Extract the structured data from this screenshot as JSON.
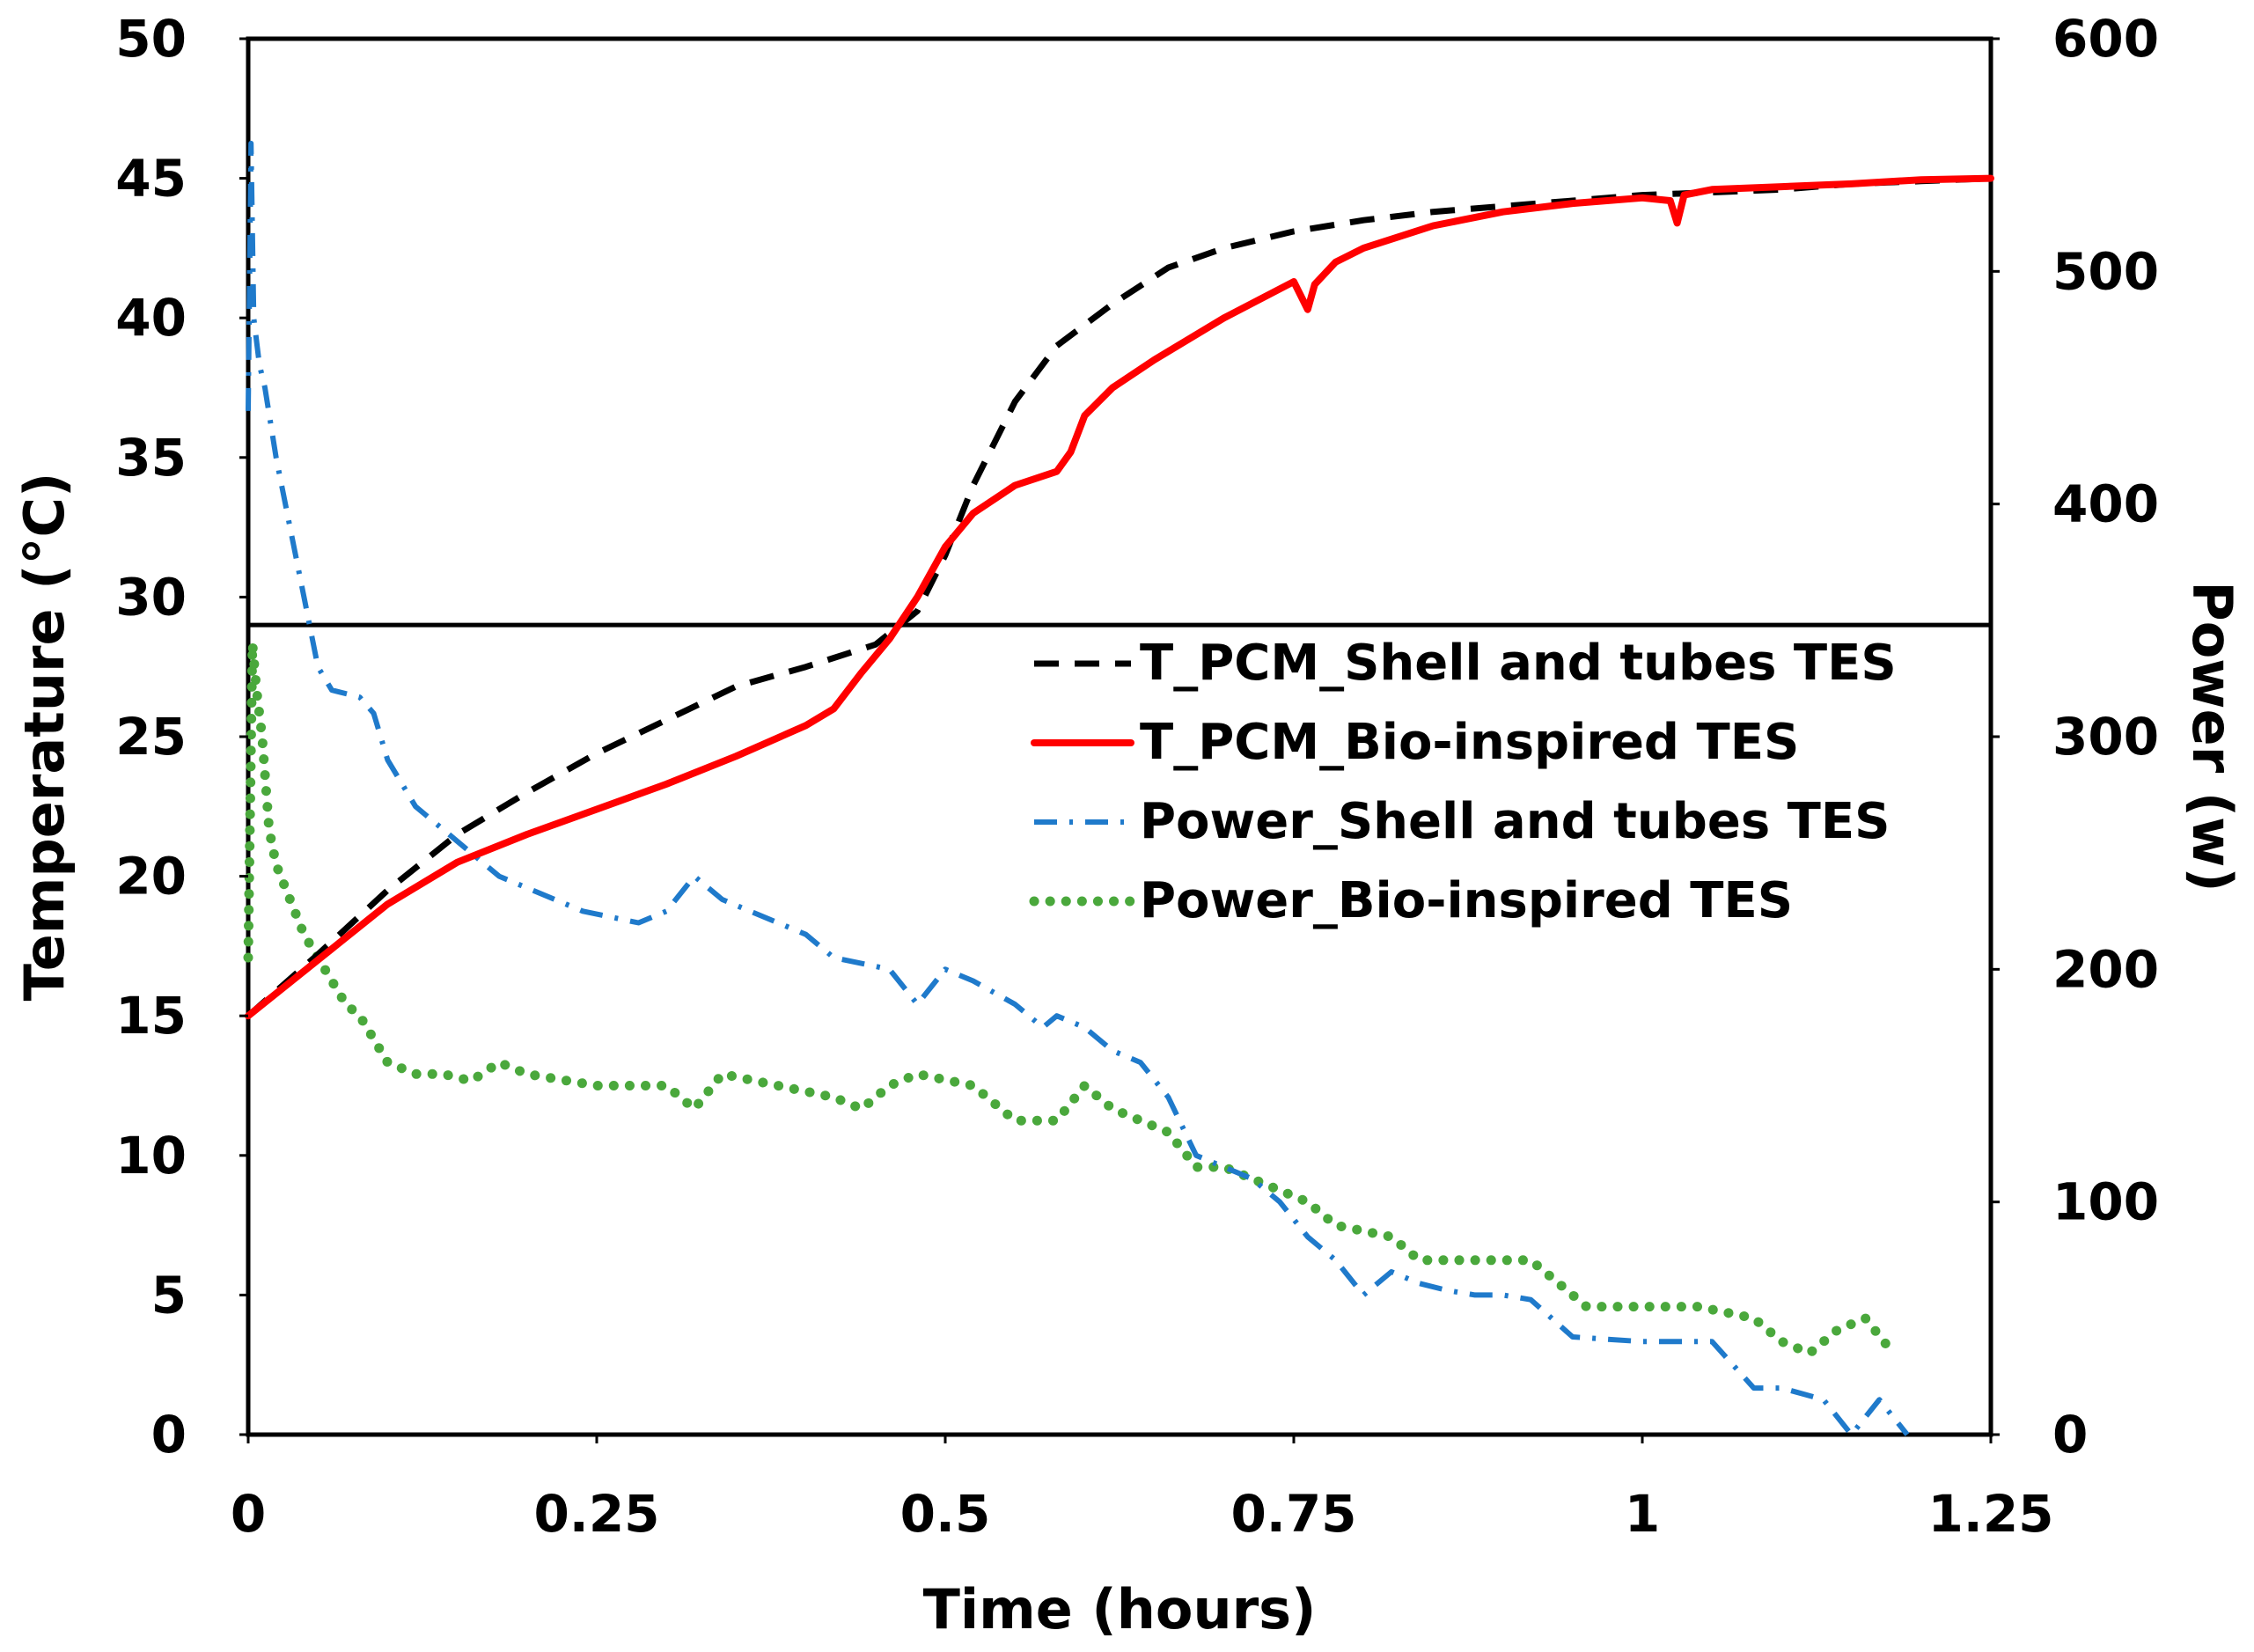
{
  "chart_data": {
    "type": "line",
    "title": "",
    "xlabel": "Time (hours)",
    "ylabel": "Temperature (°C)",
    "y2label": "Power (w)",
    "xlim": [
      0,
      1.25
    ],
    "ylim": [
      0,
      50
    ],
    "y2lim": [
      0,
      600
    ],
    "x_ticks": [
      "0",
      "0.25",
      "0.5",
      "0.75",
      "1",
      "1.25"
    ],
    "y_ticks": [
      "0",
      "5",
      "10",
      "15",
      "20",
      "25",
      "30",
      "35",
      "40",
      "45",
      "50"
    ],
    "y2_ticks": [
      "0",
      "100",
      "200",
      "300",
      "400",
      "500",
      "600"
    ],
    "reference_line": {
      "y": 29,
      "axis": "left"
    },
    "legend_position": "center-right",
    "series": [
      {
        "name": "T_PCM_Shell and tubes TES",
        "axis": "left",
        "color": "#000000",
        "style": "dashed",
        "x": [
          0,
          0.05,
          0.1,
          0.15,
          0.2,
          0.25,
          0.3,
          0.35,
          0.4,
          0.45,
          0.48,
          0.5,
          0.52,
          0.55,
          0.58,
          0.62,
          0.66,
          0.7,
          0.75,
          0.8,
          0.85,
          0.9,
          0.95,
          1.0,
          1.05,
          1.1,
          1.15,
          1.2,
          1.25
        ],
        "y": [
          15,
          17.2,
          19.5,
          21.5,
          23,
          24.4,
          25.6,
          26.8,
          27.5,
          28.3,
          29.5,
          31.5,
          34,
          37,
          39,
          40.5,
          41.8,
          42.5,
          43.1,
          43.5,
          43.8,
          44.0,
          44.2,
          44.4,
          44.5,
          44.6,
          44.8,
          44.9,
          45.0
        ]
      },
      {
        "name": "T_PCM_Bio-inspired TES",
        "axis": "left",
        "color": "#ff0000",
        "style": "solid",
        "x": [
          0,
          0.05,
          0.1,
          0.15,
          0.2,
          0.25,
          0.3,
          0.35,
          0.4,
          0.42,
          0.44,
          0.46,
          0.48,
          0.5,
          0.52,
          0.55,
          0.58,
          0.59,
          0.6,
          0.62,
          0.65,
          0.7,
          0.75,
          0.76,
          0.765,
          0.78,
          0.8,
          0.85,
          0.9,
          0.95,
          1.0,
          1.02,
          1.025,
          1.03,
          1.05,
          1.1,
          1.15,
          1.2,
          1.25
        ],
        "y": [
          15,
          17,
          19,
          20.5,
          21.5,
          22.4,
          23.3,
          24.3,
          25.4,
          26,
          27.3,
          28.5,
          30,
          31.8,
          33,
          34,
          34.5,
          35.2,
          36.5,
          37.5,
          38.5,
          40,
          41.3,
          40.3,
          41.2,
          42,
          42.5,
          43.3,
          43.8,
          44.1,
          44.3,
          44.2,
          43.4,
          44.4,
          44.6,
          44.7,
          44.8,
          44.95,
          45.0
        ]
      },
      {
        "name": "Power_Shell and tubes TES",
        "axis": "right",
        "color": "#1f7acb",
        "style": "dashdot",
        "x": [
          0,
          0.002,
          0.004,
          0.008,
          0.012,
          0.02,
          0.03,
          0.04,
          0.05,
          0.06,
          0.08,
          0.09,
          0.1,
          0.12,
          0.14,
          0.18,
          0.2,
          0.24,
          0.28,
          0.3,
          0.32,
          0.34,
          0.36,
          0.38,
          0.4,
          0.42,
          0.46,
          0.48,
          0.5,
          0.52,
          0.55,
          0.57,
          0.58,
          0.6,
          0.62,
          0.64,
          0.66,
          0.68,
          0.72,
          0.74,
          0.76,
          0.78,
          0.8,
          0.82,
          0.84,
          0.86,
          0.88,
          0.9,
          0.92,
          0.95,
          1.0,
          1.05,
          1.08,
          1.1,
          1.13,
          1.15,
          1.17,
          1.19
        ],
        "y": [
          440,
          555,
          480,
          460,
          450,
          420,
          390,
          360,
          330,
          320,
          317,
          310,
          290,
          270,
          260,
          240,
          235,
          225,
          220,
          225,
          240,
          230,
          225,
          220,
          215,
          205,
          200,
          185,
          200,
          195,
          185,
          175,
          180,
          175,
          165,
          160,
          145,
          120,
          110,
          100,
          85,
          75,
          60,
          70,
          65,
          62,
          60,
          60,
          58,
          42,
          40,
          40,
          20,
          20,
          15,
          0,
          15,
          0
        ]
      },
      {
        "name": "Power_Bio-inspired TES",
        "axis": "right",
        "color": "#4aa83c",
        "style": "dotted",
        "x": [
          0,
          0.003,
          0.006,
          0.01,
          0.015,
          0.02,
          0.03,
          0.04,
          0.05,
          0.06,
          0.07,
          0.08,
          0.09,
          0.1,
          0.12,
          0.14,
          0.16,
          0.18,
          0.2,
          0.25,
          0.3,
          0.32,
          0.34,
          0.38,
          0.42,
          0.44,
          0.46,
          0.48,
          0.52,
          0.55,
          0.58,
          0.6,
          0.62,
          0.66,
          0.68,
          0.7,
          0.72,
          0.76,
          0.78,
          0.82,
          0.84,
          0.88,
          0.92,
          0.94,
          0.96,
          1.0,
          1.04,
          1.08,
          1.1,
          1.12,
          1.14,
          1.16,
          1.18
        ],
        "y": [
          205,
          340,
          320,
          300,
          260,
          245,
          230,
          215,
          205,
          195,
          185,
          180,
          170,
          160,
          155,
          155,
          152,
          160,
          155,
          150,
          150,
          140,
          155,
          150,
          145,
          140,
          150,
          155,
          150,
          135,
          135,
          150,
          140,
          130,
          115,
          115,
          110,
          100,
          90,
          85,
          75,
          75,
          75,
          65,
          55,
          55,
          55,
          50,
          40,
          35,
          45,
          50,
          35
        ]
      }
    ]
  }
}
